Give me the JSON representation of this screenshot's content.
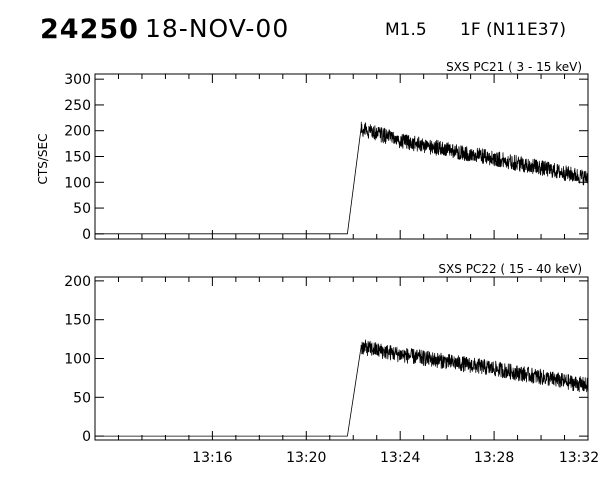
{
  "header": {
    "event_id": "24250",
    "date": "18-NOV-00",
    "flare_class": "M1.5",
    "location": "1F (N11E37)"
  },
  "chart_data": [
    {
      "type": "line",
      "title": "SXS PC21  (  3 - 15 keV)",
      "ylabel": "CTS/SEC",
      "xlabel": "",
      "xlim": [
        "13:11",
        "13:32"
      ],
      "ylim": [
        -10,
        310
      ],
      "yticks": [
        0,
        50,
        100,
        150,
        200,
        250,
        300
      ],
      "xticks": [
        "13:16",
        "13:20",
        "13:24",
        "13:28",
        "13:32"
      ],
      "show_x_tick_labels": false,
      "grid": false,
      "series": [
        {
          "x": [
            "13:11",
            "13:21:45",
            "13:22:20",
            "13:24",
            "13:26",
            "13:28",
            "13:30",
            "13:32"
          ],
          "y": [
            0,
            0,
            205,
            180,
            163,
            146,
            128,
            108
          ],
          "noise": 15
        }
      ]
    },
    {
      "type": "line",
      "title": "SXS PC22  ( 15 - 40 keV)",
      "ylabel": "",
      "xlabel": "",
      "xlim": [
        "13:11",
        "13:32"
      ],
      "ylim": [
        -5,
        205
      ],
      "yticks": [
        0,
        50,
        100,
        150,
        200
      ],
      "xticks": [
        "13:16",
        "13:20",
        "13:24",
        "13:28",
        "13:32"
      ],
      "show_x_tick_labels": true,
      "grid": false,
      "series": [
        {
          "x": [
            "13:11",
            "13:21:45",
            "13:22:20",
            "13:24",
            "13:26",
            "13:28",
            "13:30",
            "13:32"
          ],
          "y": [
            0,
            0,
            115,
            105,
            96,
            87,
            76,
            65
          ],
          "noise": 10
        }
      ]
    }
  ]
}
